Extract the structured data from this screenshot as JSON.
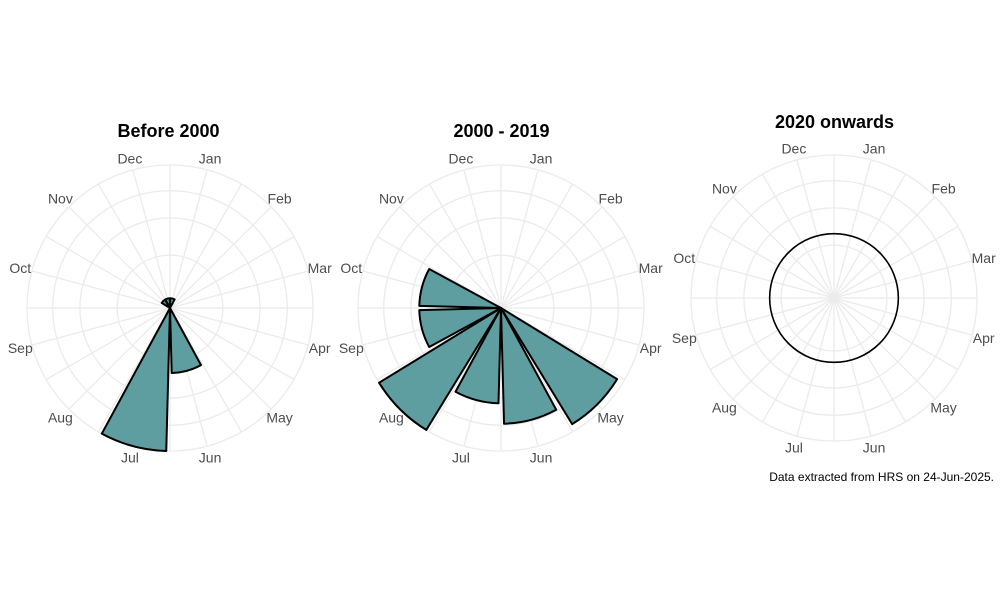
{
  "caption": "Data extracted from HRS on 24-Jun-2025.",
  "colors": {
    "bar_fill": "#5f9ea0",
    "bar_stroke": "#000000",
    "grid": "#ebebeb",
    "label": "#4d4d4d"
  },
  "month_labels": [
    "Jan",
    "Feb",
    "Mar",
    "Apr",
    "May",
    "Jun",
    "Jul",
    "Aug",
    "Sep",
    "Oct",
    "Nov",
    "Dec"
  ],
  "chart_data": [
    {
      "type": "bar",
      "coord": "polar",
      "title": "Before 2000",
      "categories": [
        "Jan",
        "Feb",
        "Mar",
        "Apr",
        "May",
        "Jun",
        "Jul",
        "Aug",
        "Sep",
        "Oct",
        "Nov",
        "Dec"
      ],
      "values": [
        0.3,
        0,
        0,
        0,
        0,
        2,
        4.4,
        0,
        0,
        0,
        0.3,
        0.3
      ],
      "rlim": [
        0,
        4.4
      ],
      "grid": true
    },
    {
      "type": "bar",
      "coord": "polar",
      "title": "2000 - 2019",
      "categories": [
        "Jan",
        "Feb",
        "Mar",
        "Apr",
        "May",
        "Jun",
        "Jul",
        "Aug",
        "Sep",
        "Oct",
        "Nov",
        "Dec"
      ],
      "values": [
        0,
        0,
        0,
        0,
        2,
        1.7,
        1.4,
        2.1,
        1.2,
        1.2,
        0,
        0
      ],
      "rlim": [
        0,
        2.1
      ],
      "grid": true
    },
    {
      "type": "bar",
      "coord": "polar",
      "title": "2020 onwards",
      "categories": [
        "Jan",
        "Feb",
        "Mar",
        "Apr",
        "May",
        "Jun",
        "Jul",
        "Aug",
        "Sep",
        "Oct",
        "Nov",
        "Dec"
      ],
      "values": [
        0,
        0,
        0,
        0,
        0,
        0,
        0,
        0,
        0,
        0,
        0,
        0
      ],
      "grid": true,
      "empty_circle": true
    }
  ]
}
